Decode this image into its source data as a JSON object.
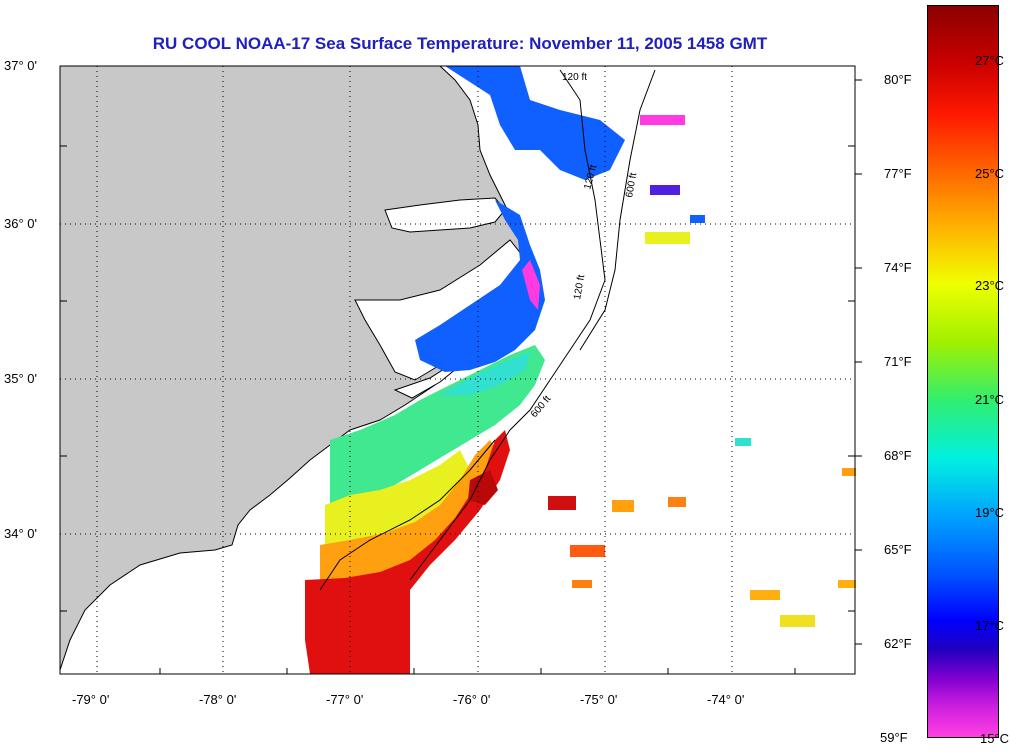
{
  "title": "RU COOL  NOAA-17  Sea Surface Temperature:  November 11, 2005 1458 GMT",
  "lat_labels": [
    "37° 0'",
    "36° 0'",
    "35° 0'",
    "34° 0'"
  ],
  "lon_labels": [
    "-79° 0'",
    "-78° 0'",
    "-77° 0'",
    "-76° 0'",
    "-75° 0'",
    "-74° 0'"
  ],
  "fahrenheit_labels": [
    "80°F",
    "77°F",
    "74°F",
    "71°F",
    "68°F",
    "65°F",
    "62°F",
    "59°F"
  ],
  "celsius_labels": [
    "27°C",
    "25°C",
    "23°C",
    "21°C",
    "19°C",
    "17°C",
    "15°C"
  ],
  "contour_labels": [
    "120 ft",
    "120 ft",
    "600 ft",
    "120 ft",
    "600 ft"
  ],
  "colors": {
    "land": "#c8c8c8",
    "title": "#2020c0",
    "ocean": "#ffffff"
  }
}
